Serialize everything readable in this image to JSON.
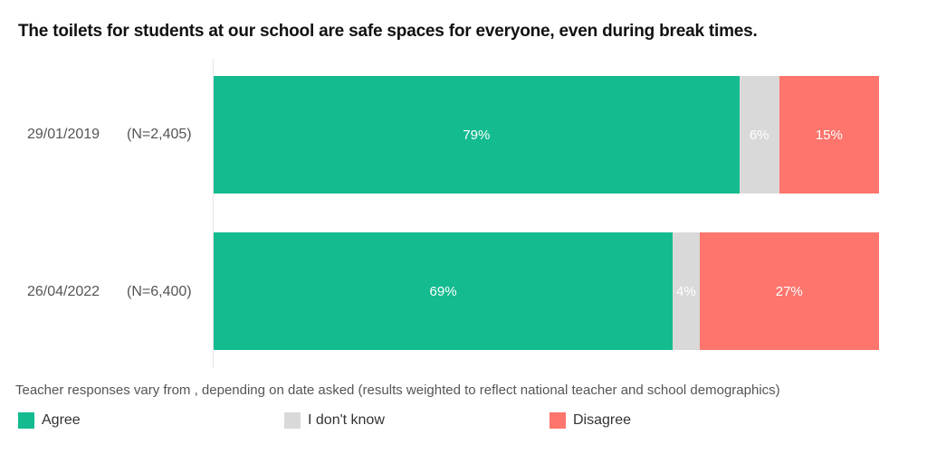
{
  "chart_data": {
    "type": "bar",
    "orientation": "horizontal",
    "stacked": true,
    "title": "The toilets for students at our school are safe spaces for everyone, even during break times.",
    "categories": [
      {
        "date": "29/01/2019",
        "n": "(N=2,405)"
      },
      {
        "date": "26/04/2022",
        "n": "(N=6,400)"
      }
    ],
    "series": [
      {
        "name": "Agree",
        "color": "#13bb8f",
        "values": [
          79,
          69
        ],
        "labels": [
          "79%",
          "69%"
        ]
      },
      {
        "name": "I don't know",
        "color": "#d9d9d9",
        "values": [
          6,
          4
        ],
        "labels": [
          "6%",
          "4%"
        ]
      },
      {
        "name": "Disagree",
        "color": "#fd756d",
        "values": [
          15,
          27
        ],
        "labels": [
          "15%",
          "27%"
        ]
      }
    ],
    "xlim": [
      0,
      100
    ],
    "grid": false,
    "legend_placement": "bottom",
    "note": "Teacher responses vary from , depending on date asked (results weighted to reflect national teacher and school demographics)"
  }
}
